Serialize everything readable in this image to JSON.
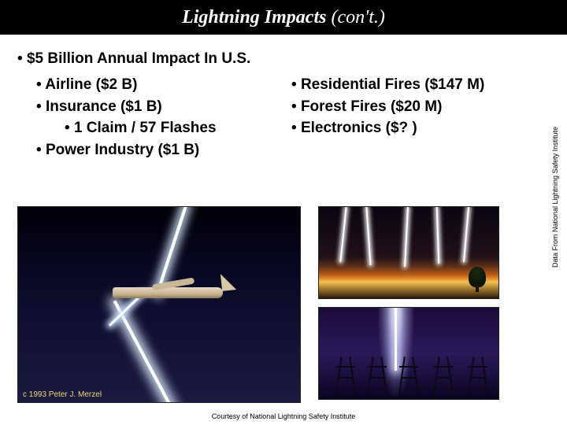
{
  "title": {
    "main": "Lightning Impacts",
    "cont": "(con't.)"
  },
  "bullets": {
    "header": "$5 Billion Annual Impact In U.S.",
    "left": {
      "items": [
        {
          "text": "Airline ($2 B)",
          "sub": null
        },
        {
          "text": "Insurance ($1 B)",
          "sub": "1 Claim / 57 Flashes"
        },
        {
          "text": "Power Industry ($1 B)",
          "sub": null
        }
      ]
    },
    "right": {
      "items": [
        {
          "text": "Residential Fires ($147 M)"
        },
        {
          "text": "Forest Fires ($20 M)"
        },
        {
          "text": "Electronics ($? )"
        }
      ]
    }
  },
  "credits": {
    "side": "Data From National Lightning Safety Institute",
    "bottom": "Courtesy of National Lightning Safety Institute",
    "image_left": "c 1993 Peter J. Merzel"
  },
  "colors": {
    "titlebar_bg": "#000000",
    "title_fg": "#ffffff",
    "page_bg": "#ffffff",
    "text": "#000000"
  }
}
